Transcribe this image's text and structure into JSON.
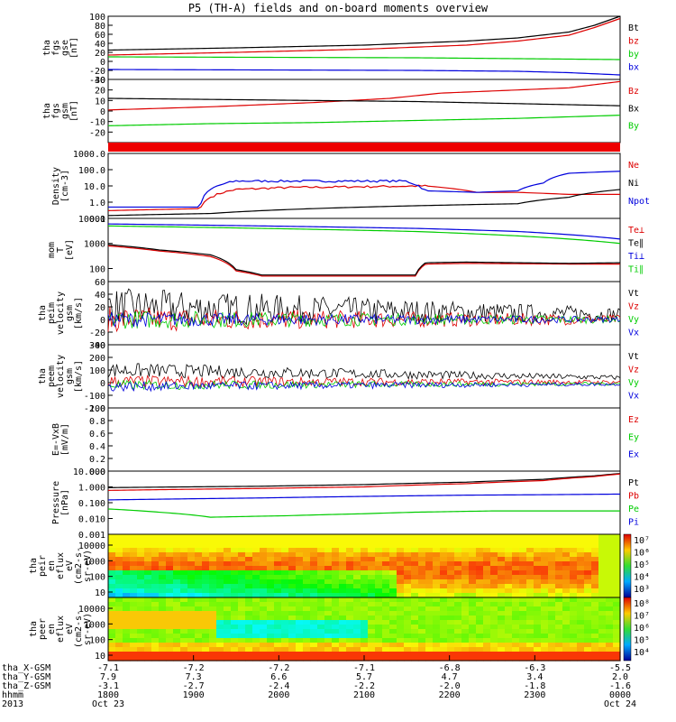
{
  "title": "P5 (TH-A) fields and on-board moments overview",
  "panels": [
    {
      "id": "fgs_gse",
      "type": "line",
      "ylabel": [
        "tha",
        "fgs",
        "gse",
        "[nT]"
      ],
      "ylim": [
        -40,
        100
      ],
      "yticks": [
        100,
        80,
        60,
        40,
        20,
        0,
        -20,
        -40
      ],
      "series": [
        {
          "name": "Bt",
          "color": "#000000",
          "x": [
            0,
            0.25,
            0.5,
            0.7,
            0.8,
            0.9,
            0.95,
            1.0
          ],
          "y": [
            25,
            30,
            36,
            45,
            52,
            65,
            80,
            100
          ]
        },
        {
          "name": "bz",
          "color": "#dd0000",
          "x": [
            0,
            0.25,
            0.5,
            0.7,
            0.8,
            0.9,
            0.95,
            1.0
          ],
          "y": [
            14,
            20,
            27,
            36,
            45,
            58,
            75,
            95
          ]
        },
        {
          "name": "by",
          "color": "#00cc00",
          "x": [
            0,
            0.3,
            0.6,
            0.8,
            1.0
          ],
          "y": [
            10,
            9,
            8,
            6,
            4
          ]
        },
        {
          "name": "bx",
          "color": "#0000dd",
          "x": [
            0,
            0.3,
            0.6,
            0.8,
            0.9,
            1.0
          ],
          "y": [
            -18,
            -19,
            -20,
            -22,
            -25,
            -30
          ]
        }
      ]
    },
    {
      "id": "fgs_gsm",
      "type": "line",
      "ylabel": [
        "tha",
        "fgs",
        "gsm",
        "[nT]"
      ],
      "ylim": [
        -30,
        30
      ],
      "yticks": [
        30,
        20,
        10,
        0,
        -10,
        -20
      ],
      "series": [
        {
          "name": "Bz",
          "color": "#dd0000",
          "x": [
            0,
            0.2,
            0.4,
            0.55,
            0.65,
            0.8,
            0.9,
            1.0
          ],
          "y": [
            1,
            4,
            8,
            12,
            17,
            20,
            22,
            28
          ]
        },
        {
          "name": "Bx",
          "color": "#000000",
          "x": [
            0,
            0.2,
            0.4,
            0.6,
            0.8,
            0.9,
            1.0
          ],
          "y": [
            12,
            11,
            10,
            9,
            7,
            6,
            5
          ]
        },
        {
          "name": "By",
          "color": "#00cc00",
          "x": [
            0,
            0.2,
            0.4,
            0.6,
            0.8,
            1.0
          ],
          "y": [
            -14,
            -12,
            -11,
            -9,
            -7,
            -4
          ]
        }
      ]
    },
    {
      "id": "state_bar",
      "type": "bar"
    },
    {
      "id": "density",
      "type": "log",
      "ylabel": [
        "Density",
        "[cm-3]"
      ],
      "ylim": [
        0.1,
        1000
      ],
      "yticks": [
        "1000.0",
        "100.0",
        "10.0",
        "1.0",
        "0.1"
      ],
      "series": [
        {
          "name": "Ne",
          "color": "#dd0000",
          "x": [
            0,
            0.18,
            0.25,
            0.35,
            0.5,
            0.62,
            0.72,
            0.8,
            0.9,
            1.0
          ],
          "y": [
            0.3,
            0.4,
            6,
            8,
            9,
            10,
            4,
            4,
            3,
            3
          ]
        },
        {
          "name": "Ni",
          "color": "#000000",
          "x": [
            0,
            0.2,
            0.4,
            0.6,
            0.8,
            0.9,
            1.0
          ],
          "y": [
            0.15,
            0.2,
            0.4,
            0.6,
            0.8,
            2,
            6
          ]
        },
        {
          "name": "Npot",
          "color": "#0000dd",
          "x": [
            0.18,
            0.25,
            0.35,
            0.5,
            0.58,
            0.62,
            0.72,
            0.8,
            0.85,
            0.9,
            1.0
          ],
          "y": [
            0.5,
            20,
            20,
            20,
            20,
            5,
            4,
            5,
            15,
            60,
            80
          ]
        }
      ]
    },
    {
      "id": "mom_t",
      "type": "log",
      "ylabel": [
        "mom",
        "T",
        "[eV]"
      ],
      "ylim": [
        30,
        10000
      ],
      "yticks": [
        "10000",
        "1000",
        "100"
      ],
      "series": [
        {
          "name": "Te⊥",
          "color": "#dd0000",
          "x": [
            0,
            0.1,
            0.2,
            0.25,
            0.3,
            0.6,
            0.62,
            0.7,
            0.9,
            1.0
          ],
          "y": [
            800,
            500,
            300,
            80,
            50,
            50,
            150,
            160,
            150,
            150
          ]
        },
        {
          "name": "Te∥",
          "color": "#000000",
          "x": [
            0,
            0.1,
            0.2,
            0.25,
            0.3,
            0.6,
            0.62,
            0.7,
            0.9,
            1.0
          ],
          "y": [
            900,
            550,
            350,
            90,
            55,
            55,
            170,
            180,
            160,
            170
          ]
        },
        {
          "name": "Ti⊥",
          "color": "#0000dd",
          "x": [
            0,
            0.3,
            0.6,
            0.8,
            1.0
          ],
          "y": [
            6000,
            5000,
            4000,
            3000,
            1500
          ]
        },
        {
          "name": "Ti∥",
          "color": "#00cc00",
          "x": [
            0,
            0.3,
            0.6,
            0.8,
            1.0
          ],
          "y": [
            5000,
            4000,
            3000,
            2000,
            1000
          ]
        }
      ]
    },
    {
      "id": "peim_v",
      "type": "noisy",
      "ylabel": [
        "tha",
        "peim",
        "velocity",
        "gsm",
        "[km/s]"
      ],
      "ylim": [
        -40,
        60
      ],
      "yticks": [
        60,
        40,
        20,
        0,
        -20,
        -40
      ],
      "series": [
        {
          "name": "Vt",
          "color": "#000000",
          "base": 20,
          "amp": 30,
          "decay": 0.9
        },
        {
          "name": "Vz",
          "color": "#dd0000",
          "base": 0,
          "amp": 20,
          "decay": 0.9
        },
        {
          "name": "Vy",
          "color": "#00cc00",
          "base": 0,
          "amp": 15,
          "decay": 0.9
        },
        {
          "name": "Vx",
          "color": "#0000dd",
          "base": 0,
          "amp": 12,
          "decay": 0.9
        }
      ]
    },
    {
      "id": "peem_v",
      "type": "noisy",
      "ylabel": [
        "tha",
        "peem",
        "velocity",
        "gsm",
        "[km/s]"
      ],
      "ylim": [
        -200,
        300
      ],
      "yticks": [
        300,
        200,
        100,
        0,
        -100,
        -200
      ],
      "series": [
        {
          "name": "Vt",
          "color": "#000000",
          "base": 100,
          "amp": 60,
          "decay": 1.0
        },
        {
          "name": "Vz",
          "color": "#dd0000",
          "base": 10,
          "amp": 50,
          "decay": 1.0
        },
        {
          "name": "Vy",
          "color": "#00cc00",
          "base": -20,
          "amp": 40,
          "decay": 1.0
        },
        {
          "name": "Vx",
          "color": "#0000dd",
          "base": -30,
          "amp": 40,
          "decay": 1.0
        }
      ]
    },
    {
      "id": "exb",
      "type": "empty",
      "ylabel": [
        "E=-VxB",
        "[mV/m]"
      ],
      "ylim": [
        0,
        1.0
      ],
      "yticks": [
        "1.0",
        "0.8",
        "0.6",
        "0.4",
        "0.2",
        "0.0"
      ],
      "series": [
        {
          "name": "Ez",
          "color": "#dd0000"
        },
        {
          "name": "Ey",
          "color": "#00cc00"
        },
        {
          "name": "Ex",
          "color": "#0000dd"
        }
      ]
    },
    {
      "id": "pressure",
      "type": "log",
      "ylabel": [
        "Pressure",
        "[nPa]"
      ],
      "ylim": [
        0.001,
        10
      ],
      "yticks": [
        "10.000",
        "1.000",
        "0.100",
        "0.010",
        "0.001"
      ],
      "series": [
        {
          "name": "Pt",
          "color": "#000000",
          "x": [
            0,
            0.3,
            0.5,
            0.7,
            0.85,
            0.95,
            1.0
          ],
          "y": [
            0.9,
            1.1,
            1.4,
            2,
            3,
            5,
            7
          ]
        },
        {
          "name": "Pb",
          "color": "#dd0000",
          "x": [
            0,
            0.3,
            0.5,
            0.7,
            0.85,
            0.95,
            1.0
          ],
          "y": [
            0.6,
            0.8,
            1.0,
            1.6,
            2.5,
            4.5,
            6.5
          ]
        },
        {
          "name": "Pe",
          "color": "#00cc00",
          "x": [
            0,
            0.1,
            0.2,
            0.35,
            0.5,
            0.6,
            0.75,
            1.0
          ],
          "y": [
            0.04,
            0.025,
            0.012,
            0.015,
            0.02,
            0.025,
            0.03,
            0.03
          ]
        },
        {
          "name": "Pi",
          "color": "#0000dd",
          "x": [
            0,
            0.3,
            0.5,
            0.7,
            0.85,
            1.0
          ],
          "y": [
            0.15,
            0.2,
            0.25,
            0.3,
            0.32,
            0.35
          ]
        }
      ]
    },
    {
      "id": "peir_flux",
      "type": "spec",
      "ylabel": [
        "tha",
        "peir",
        "en",
        "eflux",
        "eV",
        "(cm2-s-",
        "sr-eV)"
      ],
      "yticks": [
        "10000",
        "1000",
        "100",
        "10"
      ],
      "colorbar": [
        "10⁷",
        "10⁶",
        "10⁵",
        "10⁴",
        "10³"
      ]
    },
    {
      "id": "peer_flux",
      "type": "spec",
      "ylabel": [
        "tha",
        "peer",
        "en",
        "eflux",
        "eV",
        "(cm2-s-",
        "sr-eV)"
      ],
      "yticks": [
        "10000",
        "1000",
        "100",
        "10"
      ],
      "colorbar": [
        "10⁸",
        "10⁷",
        "10⁶",
        "10⁵",
        "10⁴"
      ]
    }
  ],
  "xaxis": {
    "rows": [
      "tha_X-GSM",
      "tha_Y-GSM",
      "tha_Z-GSM",
      "hhmm",
      "2013"
    ],
    "ticks": [
      {
        "vals": [
          "-7.1",
          "7.9",
          "-3.1",
          "1800",
          "Oct 23"
        ]
      },
      {
        "vals": [
          "-7.2",
          "7.3",
          "-2.7",
          "1900",
          ""
        ]
      },
      {
        "vals": [
          "-7.2",
          "6.6",
          "-2.4",
          "2000",
          ""
        ]
      },
      {
        "vals": [
          "-7.1",
          "5.7",
          "-2.2",
          "2100",
          ""
        ]
      },
      {
        "vals": [
          "-6.8",
          "4.7",
          "-2.0",
          "2200",
          ""
        ]
      },
      {
        "vals": [
          "-6.3",
          "3.4",
          "-1.8",
          "2300",
          ""
        ]
      },
      {
        "vals": [
          "-5.5",
          "2.0",
          "-1.6",
          "0000",
          "Oct 24"
        ]
      }
    ]
  }
}
